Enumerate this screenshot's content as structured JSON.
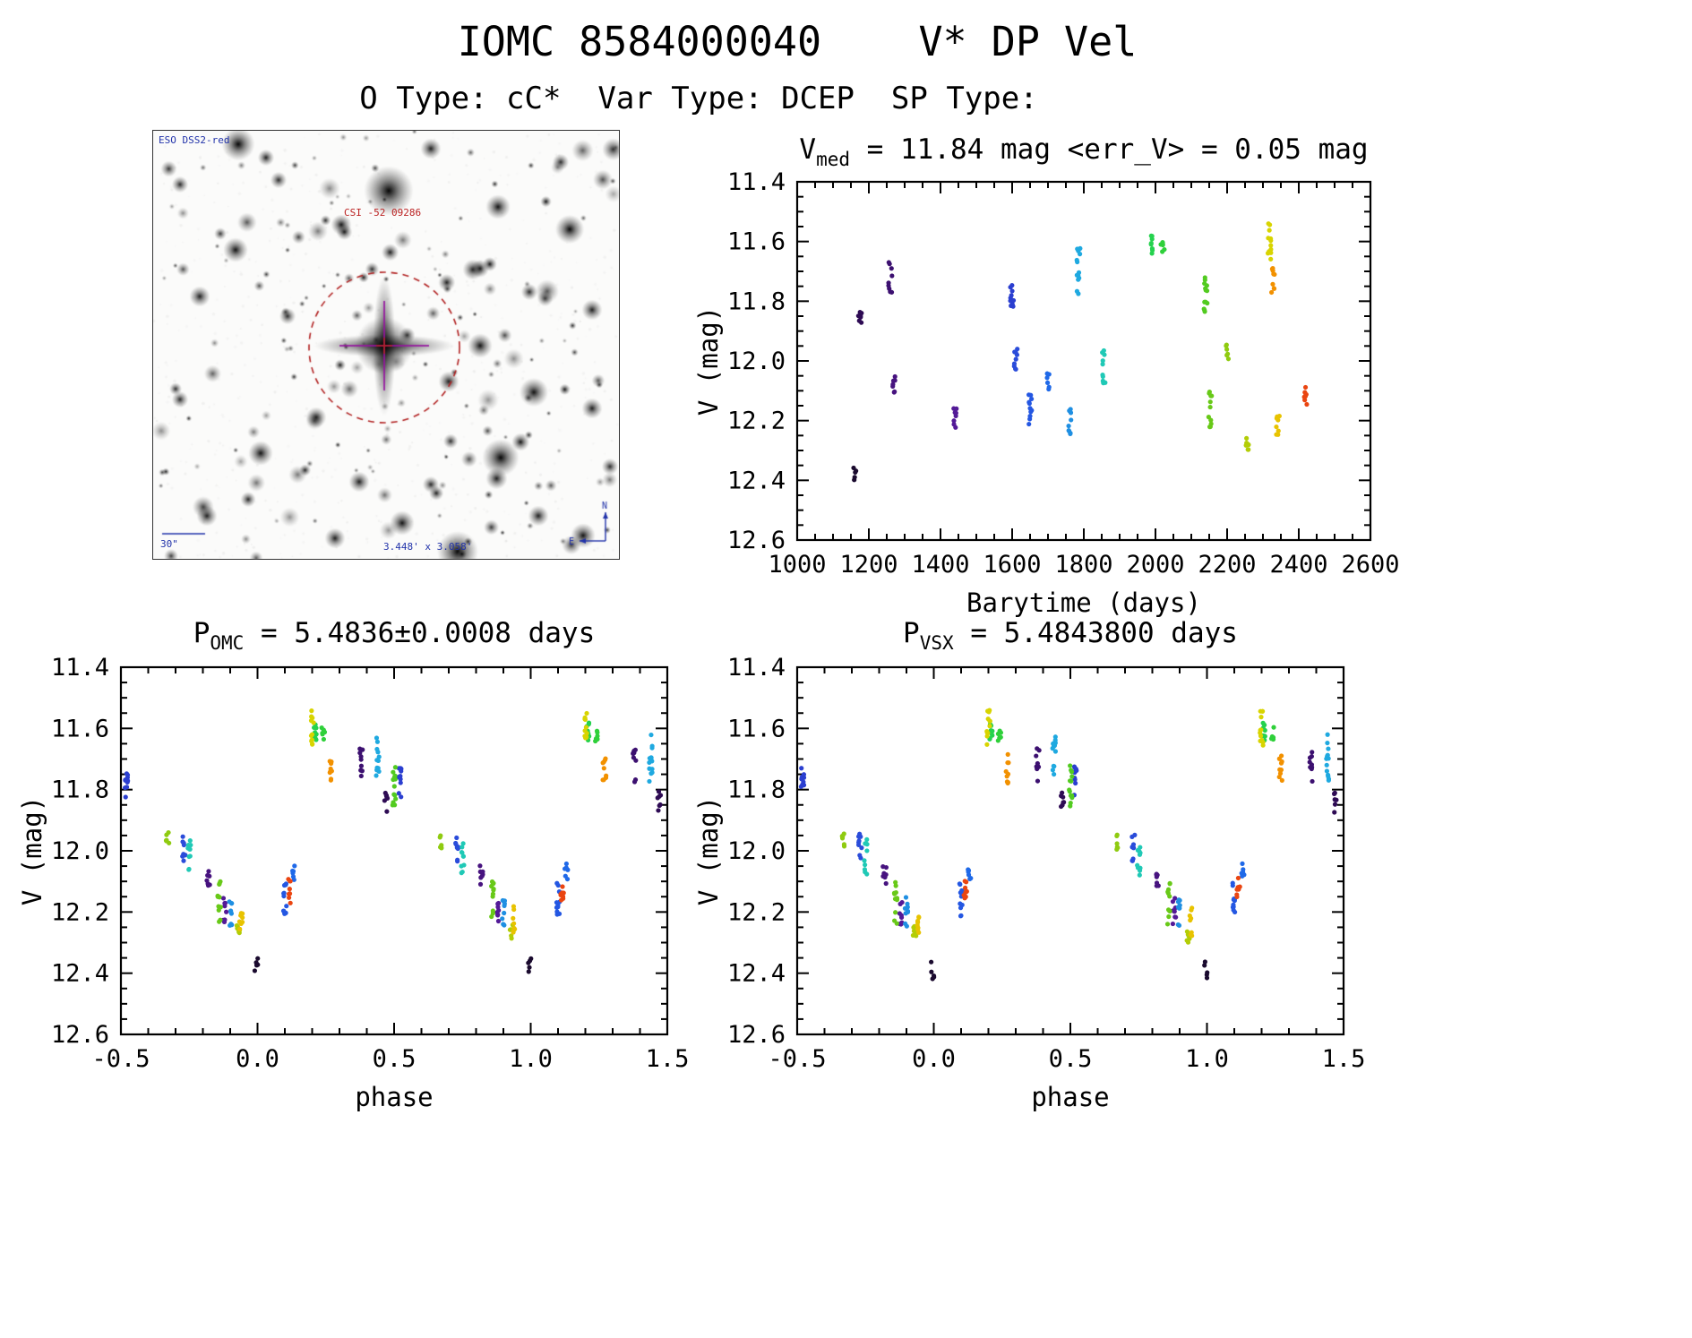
{
  "header": {
    "title": "IOMC 8584000040    V* DP Vel",
    "subtitle": "O Type: cC*  Var Type: DCEP  SP Type:"
  },
  "finder": {
    "survey_label": "ESO DSS2-red",
    "target_label": "CSI -52 09286",
    "scale_label": "30\"",
    "fov_label": "3.448' x 3.058'",
    "marker_color": "#b22222",
    "crosshair_color": "#9614a0",
    "annotation_color": "#2233aa",
    "compass": {
      "up": "N",
      "left": "E"
    }
  },
  "chart_data": [
    {
      "id": "lightcurve",
      "type": "scatter",
      "title": {
        "pre": "V",
        "sub": "med",
        "post": " = 11.84 mag <err_V> = 0.05 mag"
      },
      "stats": {
        "v_med_mag": 11.84,
        "err_v_mag": 0.05
      },
      "xlabel": "Barytime (days)",
      "ylabel": "V (mag)",
      "x_mode": "time",
      "xlim": [
        1000,
        2600
      ],
      "ylim": [
        11.4,
        12.6
      ],
      "y_inverted": true,
      "grid": false,
      "legend": false,
      "xticks": [
        1000,
        1200,
        1400,
        1600,
        1800,
        2000,
        2200,
        2400,
        2600
      ],
      "xtick_labels": [
        "1000",
        "1200",
        "1400",
        "1600",
        "1800",
        "2000",
        "2200",
        "2400",
        "2600"
      ],
      "x_minor_step": 50,
      "yticks": [
        11.4,
        11.6,
        11.8,
        12.0,
        12.2,
        12.4,
        12.6
      ],
      "ytick_labels": [
        "11.4",
        "11.6",
        "11.8",
        "12.0",
        "12.2",
        "12.4",
        "12.6"
      ],
      "y_minor_step": 0.05
    },
    {
      "id": "phase_omc",
      "type": "scatter",
      "title": {
        "pre": "P",
        "sub": "OMC",
        "post": " = 5.4836±0.0008 days"
      },
      "period_days": "5.4836±0.0008",
      "xlabel": "phase",
      "ylabel": "V (mag)",
      "x_mode": "phase",
      "xlim": [
        -0.5,
        1.5
      ],
      "ylim": [
        11.4,
        12.6
      ],
      "y_inverted": true,
      "grid": false,
      "legend": false,
      "xticks": [
        -0.5,
        0.0,
        0.5,
        1.0,
        1.5
      ],
      "xtick_labels": [
        "-0.5",
        "0.0",
        "0.5",
        "1.0",
        "1.5"
      ],
      "x_minor_step": 0.1,
      "yticks": [
        11.4,
        11.6,
        11.8,
        12.0,
        12.2,
        12.4,
        12.6
      ],
      "ytick_labels": [
        "11.4",
        "11.6",
        "11.8",
        "12.0",
        "12.2",
        "12.4",
        "12.6"
      ],
      "y_minor_step": 0.05
    },
    {
      "id": "phase_vsx",
      "type": "scatter",
      "title": {
        "pre": "P",
        "sub": "VSX",
        "post": " = 5.4843800 days"
      },
      "period_days": "5.4843800",
      "xlabel": "phase",
      "ylabel": "V (mag)",
      "x_mode": "phase",
      "xlim": [
        -0.5,
        1.5
      ],
      "ylim": [
        11.4,
        12.6
      ],
      "y_inverted": true,
      "grid": false,
      "legend": false,
      "xticks": [
        -0.5,
        0.0,
        0.5,
        1.0,
        1.5
      ],
      "xtick_labels": [
        "-0.5",
        "0.0",
        "0.5",
        "1.0",
        "1.5"
      ],
      "x_minor_step": 0.1,
      "yticks": [
        11.4,
        11.6,
        11.8,
        12.0,
        12.2,
        12.4,
        12.6
      ],
      "ytick_labels": [
        "11.4",
        "11.6",
        "11.8",
        "12.0",
        "12.2",
        "12.4",
        "12.6"
      ],
      "y_minor_step": 0.05
    }
  ],
  "observations": {
    "clusters": [
      {
        "barytime": 1160,
        "phase": 0.995,
        "v_mag": 12.385,
        "spread": 0.035,
        "n": 5,
        "color": "#1a0a2e"
      },
      {
        "barytime": 1175,
        "phase": 0.47,
        "v_mag": 11.84,
        "spread": 0.035,
        "n": 7,
        "color": "#2e0b54"
      },
      {
        "barytime": 1260,
        "phase": 0.38,
        "v_mag": 11.72,
        "spread": 0.055,
        "n": 9,
        "color": "#3c1070"
      },
      {
        "barytime": 1270,
        "phase": 0.82,
        "v_mag": 12.08,
        "spread": 0.035,
        "n": 7,
        "color": "#47137f"
      },
      {
        "barytime": 1440,
        "phase": 0.88,
        "v_mag": 12.2,
        "spread": 0.045,
        "n": 8,
        "color": "#531a97"
      },
      {
        "barytime": 1600,
        "phase": 0.52,
        "v_mag": 11.77,
        "spread": 0.055,
        "n": 10,
        "color": "#2b3fd0"
      },
      {
        "barytime": 1610,
        "phase": 0.73,
        "v_mag": 11.99,
        "spread": 0.045,
        "n": 9,
        "color": "#2a4cda"
      },
      {
        "barytime": 1650,
        "phase": 0.1,
        "v_mag": 12.16,
        "spread": 0.055,
        "n": 11,
        "color": "#2457e2"
      },
      {
        "barytime": 1700,
        "phase": 0.13,
        "v_mag": 12.07,
        "spread": 0.028,
        "n": 6,
        "color": "#1f69e8"
      },
      {
        "barytime": 1762,
        "phase": 0.9,
        "v_mag": 12.2,
        "spread": 0.048,
        "n": 9,
        "color": "#1f8fe2"
      },
      {
        "barytime": 1785,
        "phase": 0.44,
        "v_mag": 11.7,
        "spread": 0.08,
        "n": 13,
        "color": "#1fa9e0"
      },
      {
        "barytime": 1855,
        "phase": 0.75,
        "v_mag": 12.02,
        "spread": 0.06,
        "n": 10,
        "color": "#20c9b6"
      },
      {
        "barytime": 1990,
        "phase": 0.21,
        "v_mag": 11.61,
        "spread": 0.03,
        "n": 8,
        "color": "#25d24e"
      },
      {
        "barytime": 2020,
        "phase": 0.24,
        "v_mag": 11.62,
        "spread": 0.025,
        "n": 6,
        "color": "#2fd03a"
      },
      {
        "barytime": 2140,
        "phase": 0.5,
        "v_mag": 11.78,
        "spread": 0.075,
        "n": 13,
        "color": "#52cb20"
      },
      {
        "barytime": 2152,
        "phase": 0.86,
        "v_mag": 12.17,
        "spread": 0.07,
        "n": 11,
        "color": "#68c918"
      },
      {
        "barytime": 2200,
        "phase": 0.67,
        "v_mag": 11.97,
        "spread": 0.03,
        "n": 6,
        "color": "#8fcb10"
      },
      {
        "barytime": 2255,
        "phase": 0.93,
        "v_mag": 12.27,
        "spread": 0.03,
        "n": 7,
        "color": "#b3cd06"
      },
      {
        "barytime": 2318,
        "phase": 0.2,
        "v_mag": 11.6,
        "spread": 0.06,
        "n": 12,
        "color": "#d8d400"
      },
      {
        "barytime": 2328,
        "phase": 0.27,
        "v_mag": 11.73,
        "spread": 0.05,
        "n": 9,
        "color": "#f29100"
      },
      {
        "barytime": 2342,
        "phase": 0.94,
        "v_mag": 12.23,
        "spread": 0.05,
        "n": 8,
        "color": "#e8c300"
      },
      {
        "barytime": 2420,
        "phase": 0.115,
        "v_mag": 12.13,
        "spread": 0.045,
        "n": 8,
        "color": "#ea4511"
      }
    ]
  }
}
